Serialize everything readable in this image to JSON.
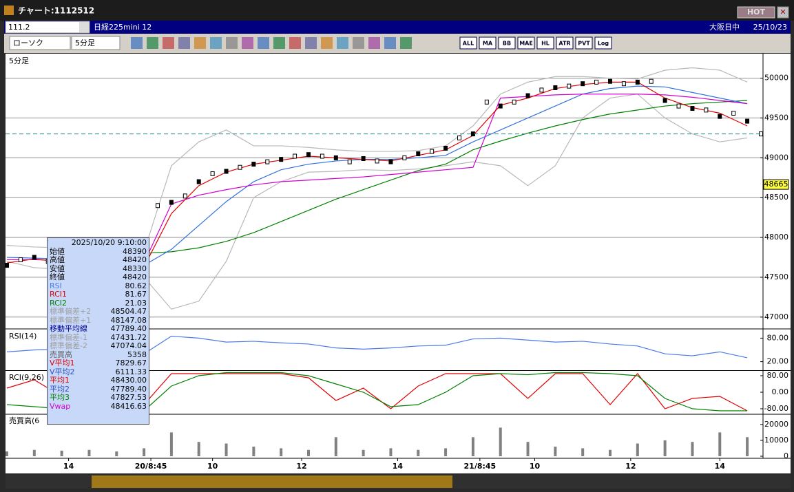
{
  "window": {
    "title": "チャート:1112512",
    "hot": "HOT"
  },
  "symbol_bar": {
    "code": "111.2",
    "name": "日経225mini 12",
    "market": "大阪日中",
    "date": "25/10/23"
  },
  "toolbar": {
    "chart_type": "ローソク",
    "interval": "5分足",
    "buttons": [
      "ALL",
      "MA",
      "BB",
      "MAE",
      "HL",
      "ATR",
      "PVT",
      "Log"
    ]
  },
  "info_box": {
    "datetime": "2025/10/20 9:10:00",
    "rows": [
      [
        "始値",
        "48390",
        "#000000"
      ],
      [
        "高値",
        "48420",
        "#000000"
      ],
      [
        "安値",
        "48330",
        "#000000"
      ],
      [
        "終値",
        "48420",
        "#000000"
      ],
      [
        "RSI",
        "80.62",
        "#4a7ae8"
      ],
      [
        "RCI1",
        "81.67",
        "#e00000"
      ],
      [
        "RCI2",
        "21.03",
        "#008000"
      ],
      [
        "標準偏差+2",
        "48504.47",
        "#a0a0a0"
      ],
      [
        "標準偏差+1",
        "48147.08",
        "#a0a0a0"
      ],
      [
        "移動平均線",
        "47789.40",
        "#000090"
      ],
      [
        "標準偏差-1",
        "47431.72",
        "#a0a0a0"
      ],
      [
        "標準偏差-2",
        "47074.04",
        "#a0a0a0"
      ],
      [
        "売買高",
        "5358",
        "#606060"
      ],
      [
        "V平均1",
        "7829.67",
        "#e00000"
      ],
      [
        "V平均2",
        "6111.33",
        "#3050c0"
      ],
      [
        "平均1",
        "48430.00",
        "#e00000"
      ],
      [
        "平均2",
        "47789.40",
        "#3050c0"
      ],
      [
        "平均3",
        "47827.53",
        "#008000"
      ],
      [
        "Vwap",
        "48416.63",
        "#d000d0"
      ]
    ]
  },
  "chart_data": [
    {
      "type": "price",
      "title": "5分足",
      "xlim": [
        0,
        55
      ],
      "xticks": [
        {
          "value": 4.5,
          "label": "14"
        },
        {
          "value": 10.5,
          "label": "20/8:45"
        },
        {
          "value": 15,
          "label": "10"
        },
        {
          "value": 21.5,
          "label": "12"
        },
        {
          "value": 28.5,
          "label": "14"
        },
        {
          "value": 34.5,
          "label": "21/8:45"
        },
        {
          "value": 38.5,
          "label": "10"
        },
        {
          "value": 45.5,
          "label": "12"
        },
        {
          "value": 52,
          "label": "14"
        }
      ],
      "ylim": [
        46860,
        50290
      ],
      "yticks": [
        47000,
        47500,
        48000,
        48500,
        49000,
        49500,
        50000
      ],
      "grid": true,
      "current_price": 48665,
      "reference_line": 49300,
      "series": [
        {
          "style": "line",
          "color": "#b8b8b8",
          "x": [
            0,
            2,
            4,
            6,
            8,
            10,
            12,
            14,
            16,
            18,
            20,
            22,
            24,
            26,
            28,
            30,
            32,
            34,
            36,
            38,
            40,
            42,
            44,
            46,
            48,
            50,
            52,
            54
          ],
          "values": [
            47900,
            47880,
            47870,
            47860,
            47850,
            47820,
            48900,
            49200,
            49350,
            49150,
            49150,
            49130,
            49100,
            49080,
            49080,
            49090,
            49150,
            49400,
            49800,
            49950,
            50020,
            50020,
            50000,
            49990,
            50100,
            50130,
            50100,
            49950
          ]
        },
        {
          "style": "line",
          "color": "#b8b8b8",
          "x": [
            0,
            2,
            4,
            6,
            8,
            10,
            12,
            14,
            16,
            18,
            20,
            22,
            24,
            26,
            28,
            30,
            32,
            34,
            36,
            38,
            40,
            42,
            44,
            46,
            48,
            50,
            52,
            54
          ],
          "values": [
            47700,
            47620,
            47600,
            47580,
            47560,
            47500,
            47100,
            47200,
            47700,
            48500,
            48700,
            48820,
            48830,
            48850,
            48840,
            48860,
            48900,
            48950,
            48900,
            48650,
            48900,
            49500,
            49750,
            49800,
            49500,
            49300,
            49200,
            49250
          ]
        },
        {
          "style": "line",
          "color": "#008000",
          "x": [
            10,
            12,
            14,
            16,
            18,
            20,
            22,
            24,
            26,
            28,
            30,
            32,
            34,
            36,
            38,
            40,
            42,
            44,
            46,
            48,
            50,
            52,
            54
          ],
          "values": [
            47800,
            47820,
            47870,
            47950,
            48060,
            48200,
            48340,
            48480,
            48600,
            48720,
            48840,
            48920,
            49100,
            49210,
            49310,
            49400,
            49480,
            49550,
            49600,
            49650,
            49680,
            49700,
            49720
          ]
        },
        {
          "style": "line",
          "color": "#3070e0",
          "x": [
            0,
            2,
            4,
            6,
            8,
            10,
            12,
            14,
            16,
            18,
            20,
            22,
            24,
            26,
            28,
            30,
            32,
            34,
            36,
            38,
            40,
            42,
            44,
            46,
            48,
            50,
            52,
            54
          ],
          "values": [
            47750,
            47740,
            47730,
            47720,
            47700,
            47650,
            47850,
            48150,
            48450,
            48700,
            48850,
            48920,
            48960,
            48980,
            48980,
            49000,
            49030,
            49200,
            49350,
            49500,
            49650,
            49800,
            49870,
            49900,
            49890,
            49820,
            49750,
            49680
          ]
        },
        {
          "style": "line",
          "color": "#d000d0",
          "x": [
            0,
            2,
            4,
            6,
            8,
            10,
            12,
            14,
            16,
            18,
            20,
            22,
            24,
            26,
            28,
            30,
            32,
            34,
            36,
            38,
            40,
            42,
            44,
            46,
            48,
            50,
            52,
            54
          ],
          "values": [
            47720,
            47720,
            47710,
            47700,
            47690,
            47680,
            48420,
            48530,
            48600,
            48660,
            48700,
            48720,
            48740,
            48760,
            48790,
            48820,
            48850,
            48880,
            49750,
            49770,
            49790,
            49800,
            49800,
            49800,
            49790,
            49760,
            49720,
            49680
          ]
        },
        {
          "style": "line",
          "color": "#e00000",
          "x": [
            0,
            2,
            4,
            6,
            8,
            10,
            12,
            14,
            16,
            18,
            20,
            22,
            24,
            26,
            28,
            30,
            32,
            34,
            36,
            38,
            40,
            42,
            44,
            46,
            48,
            50,
            52,
            54
          ],
          "values": [
            47680,
            47730,
            47690,
            47670,
            47670,
            47630,
            48300,
            48650,
            48820,
            48920,
            48970,
            49020,
            49000,
            48980,
            48960,
            49030,
            49100,
            49280,
            49660,
            49750,
            49870,
            49920,
            49950,
            49950,
            49750,
            49630,
            49560,
            49400
          ]
        },
        {
          "style": "candle",
          "color": "#000000",
          "x": [
            0,
            1,
            2,
            3,
            4,
            5,
            6,
            7,
            8,
            9,
            10,
            11,
            12,
            13,
            14,
            15,
            16,
            17,
            18,
            19,
            20,
            21,
            22,
            23,
            24,
            25,
            26,
            27,
            28,
            29,
            30,
            31,
            32,
            33,
            34,
            35,
            36,
            37,
            38,
            39,
            40,
            41,
            42,
            43,
            44,
            45,
            46,
            47,
            48,
            49,
            50,
            51,
            52,
            53,
            54,
            55
          ],
          "values": [
            47650,
            47720,
            47750,
            47700,
            47680,
            47650,
            47680,
            47700,
            47660,
            47640,
            47620,
            48400,
            48440,
            48520,
            48700,
            48800,
            48830,
            48880,
            48920,
            48950,
            48980,
            49020,
            49040,
            49020,
            49000,
            48950,
            48990,
            48960,
            48950,
            49000,
            49050,
            49080,
            49120,
            49250,
            49300,
            49700,
            49650,
            49700,
            49780,
            49850,
            49880,
            49900,
            49930,
            49950,
            49960,
            49930,
            49950,
            49960,
            49720,
            49650,
            49620,
            49600,
            49520,
            49560,
            49460,
            49300
          ]
        }
      ]
    },
    {
      "type": "rsi",
      "title": "RSI(14)",
      "ylim": [
        0,
        100
      ],
      "yticks": [
        {
          "value": 80,
          "label": "80.00"
        },
        {
          "value": 20,
          "label": "20.00"
        }
      ],
      "grid": false,
      "series": [
        {
          "style": "line",
          "color": "#4a7ae8",
          "x": [
            0,
            2,
            4,
            6,
            8,
            10,
            12,
            14,
            16,
            18,
            20,
            22,
            24,
            26,
            28,
            30,
            32,
            34,
            36,
            38,
            40,
            42,
            44,
            46,
            48,
            50,
            52,
            54
          ],
          "values": [
            45,
            50,
            52,
            48,
            45,
            40,
            85,
            80,
            70,
            72,
            68,
            65,
            55,
            52,
            55,
            60,
            62,
            78,
            80,
            75,
            70,
            72,
            65,
            60,
            40,
            35,
            45,
            30
          ]
        }
      ]
    },
    {
      "type": "rci",
      "title": "RCI(9,26)",
      "ylim": [
        -100,
        100
      ],
      "yticks": [
        {
          "value": 80,
          "label": "80.00"
        },
        {
          "value": 0,
          "label": "0.00"
        },
        {
          "value": -80,
          "label": "-80.00"
        }
      ],
      "grid": false,
      "series": [
        {
          "style": "line",
          "color": "#e00000",
          "x": [
            0,
            2,
            4,
            6,
            8,
            10,
            12,
            14,
            16,
            18,
            20,
            22,
            24,
            26,
            28,
            30,
            32,
            34,
            36,
            38,
            40,
            42,
            44,
            46,
            48,
            50,
            52,
            54
          ],
          "values": [
            20,
            60,
            -20,
            60,
            0,
            -60,
            90,
            90,
            90,
            90,
            90,
            70,
            -40,
            20,
            -80,
            30,
            90,
            90,
            90,
            -30,
            90,
            90,
            -60,
            90,
            -80,
            -30,
            -20,
            -90
          ]
        },
        {
          "style": "line",
          "color": "#008000",
          "x": [
            0,
            2,
            4,
            6,
            8,
            10,
            12,
            14,
            16,
            18,
            20,
            22,
            24,
            26,
            28,
            30,
            32,
            34,
            36,
            38,
            40,
            42,
            44,
            46,
            48,
            50,
            52,
            54
          ],
          "values": [
            -60,
            -70,
            -80,
            -80,
            -85,
            -90,
            30,
            80,
            95,
            95,
            95,
            80,
            40,
            0,
            -70,
            -60,
            0,
            80,
            90,
            85,
            95,
            95,
            90,
            80,
            -30,
            -80,
            -90,
            -90
          ]
        }
      ]
    },
    {
      "type": "volume",
      "title": "売買高(6",
      "ylim": [
        0,
        26000
      ],
      "yticks": [
        20000,
        10000,
        0
      ],
      "grid": false,
      "series": [
        {
          "style": "bar",
          "color": "#808080",
          "x": [
            0,
            2,
            4,
            6,
            8,
            10,
            12,
            14,
            16,
            18,
            20,
            22,
            24,
            26,
            28,
            30,
            32,
            34,
            36,
            38,
            40,
            42,
            44,
            46,
            48,
            50,
            52,
            54
          ],
          "values": [
            3000,
            4000,
            3500,
            4000,
            3000,
            5000,
            15000,
            9000,
            8000,
            6000,
            5000,
            4000,
            12000,
            4000,
            5000,
            4000,
            5000,
            12000,
            18000,
            9000,
            6000,
            5000,
            4000,
            8000,
            10000,
            9000,
            15000,
            12000
          ]
        }
      ]
    }
  ]
}
